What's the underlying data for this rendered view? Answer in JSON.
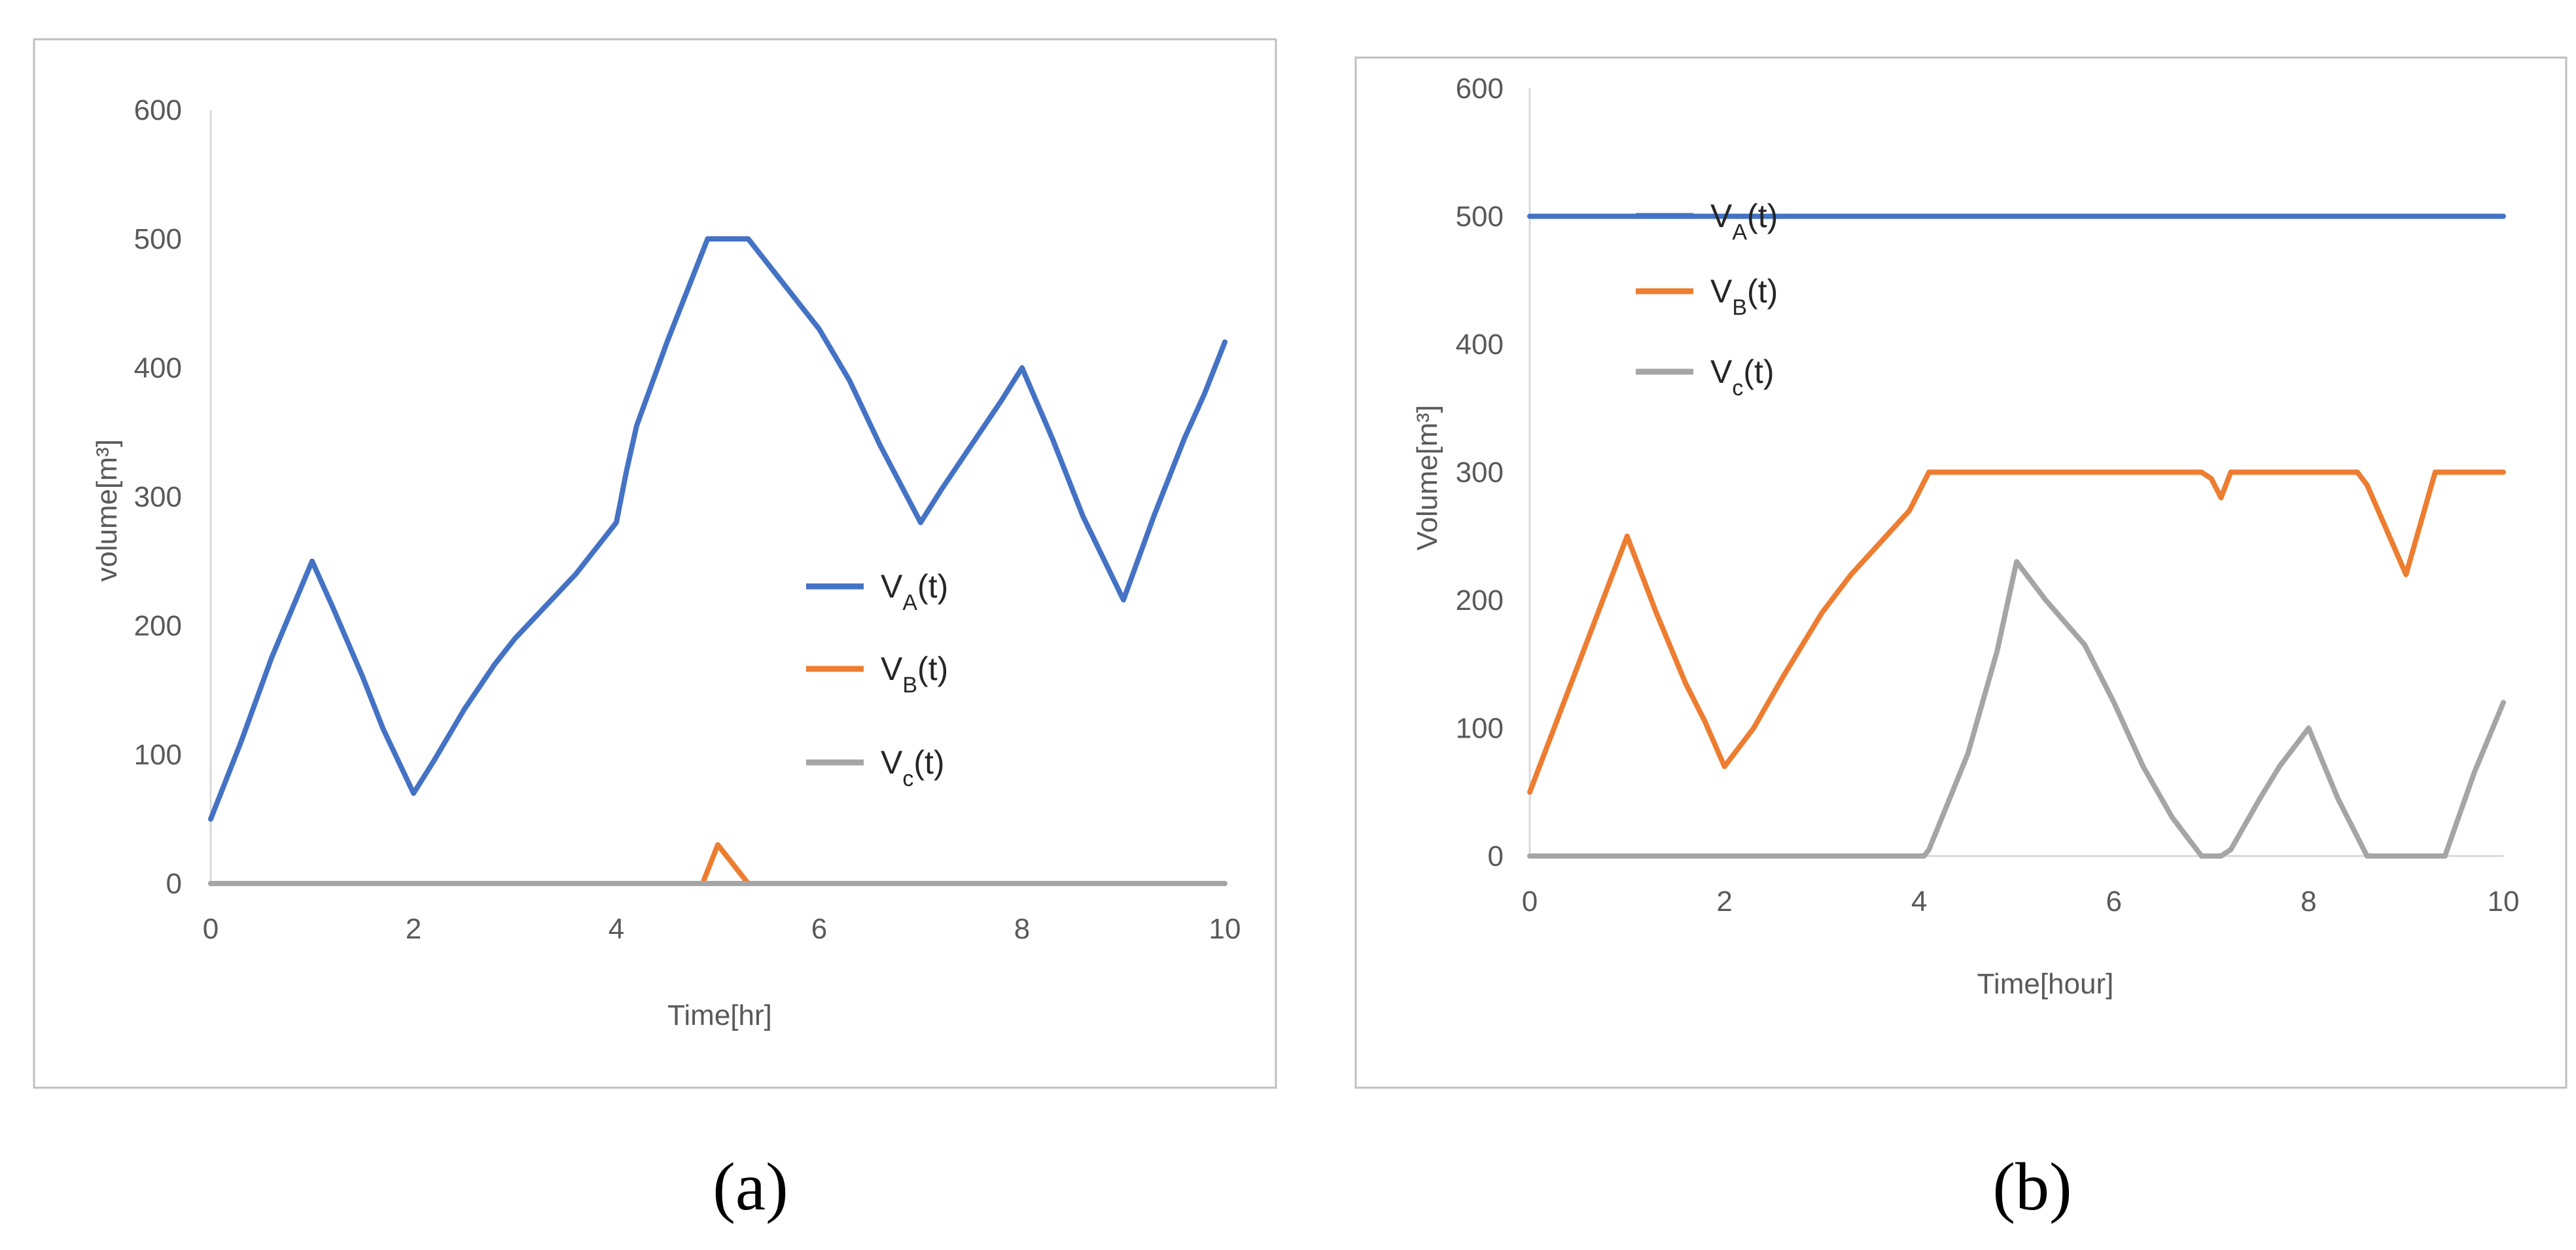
{
  "colors": {
    "va": "#4472C4",
    "vb": "#ED7D31",
    "vc": "#A5A5A5",
    "axis": "#D9D9D9",
    "frame": "#BFBFBF",
    "text": "#595959"
  },
  "chart_data": [
    {
      "id": "a",
      "type": "line",
      "caption": "(a)",
      "xlabel": "Time[hr]",
      "ylabel": "volume[m³]",
      "xlim": [
        0,
        10
      ],
      "ylim": [
        0,
        600
      ],
      "xticks": [
        0,
        2,
        4,
        6,
        8,
        10
      ],
      "yticks": [
        0,
        100,
        200,
        300,
        400,
        500,
        600
      ],
      "legend": [
        {
          "base": "V",
          "sub": "A",
          "tail": "(t)"
        },
        {
          "base": "V",
          "sub": "B",
          "tail": "(t)"
        },
        {
          "base": "V",
          "sub": "c",
          "tail": "(t)"
        }
      ],
      "series": [
        {
          "name": "VA(t)",
          "color_key": "va",
          "x": [
            0,
            0.3,
            0.6,
            1.0,
            1.2,
            1.5,
            1.7,
            2.0,
            2.2,
            2.5,
            2.8,
            3.0,
            3.3,
            3.6,
            3.8,
            4.0,
            4.1,
            4.2,
            4.5,
            4.8,
            4.9,
            5.0,
            5.3,
            5.5,
            5.8,
            6.0,
            6.3,
            6.6,
            7.0,
            7.2,
            7.5,
            7.8,
            8.0,
            8.3,
            8.6,
            9.0,
            9.3,
            9.6,
            9.8,
            10.0
          ],
          "y": [
            50,
            110,
            175,
            250,
            215,
            160,
            120,
            70,
            95,
            135,
            170,
            190,
            215,
            240,
            260,
            280,
            320,
            355,
            420,
            480,
            500,
            500,
            500,
            480,
            450,
            430,
            390,
            340,
            280,
            305,
            340,
            375,
            400,
            345,
            285,
            220,
            285,
            345,
            380,
            420
          ]
        },
        {
          "name": "VB(t)",
          "color_key": "vb",
          "x": [
            0,
            4.85,
            5.0,
            5.3,
            10.0
          ],
          "y": [
            0,
            0,
            30,
            0,
            0
          ]
        },
        {
          "name": "Vc(t)",
          "color_key": "vc",
          "x": [
            0,
            10.0
          ],
          "y": [
            0,
            0
          ]
        }
      ]
    },
    {
      "id": "b",
      "type": "line",
      "caption": "(b)",
      "xlabel": "Time[hour]",
      "ylabel": "Volume[m³]",
      "xlim": [
        0,
        10
      ],
      "ylim": [
        0,
        600
      ],
      "xticks": [
        0,
        2,
        4,
        6,
        8,
        10
      ],
      "yticks": [
        0,
        100,
        200,
        300,
        400,
        500,
        600
      ],
      "legend": [
        {
          "base": "V",
          "sub": "A",
          "tail": "(t)"
        },
        {
          "base": "V",
          "sub": "B",
          "tail": "(t)"
        },
        {
          "base": "V",
          "sub": "c",
          "tail": "(t)"
        }
      ],
      "series": [
        {
          "name": "VA(t)",
          "color_key": "va",
          "x": [
            0,
            10.0
          ],
          "y": [
            500,
            500
          ]
        },
        {
          "name": "VB(t)",
          "color_key": "vb",
          "x": [
            0,
            0.3,
            0.5,
            0.8,
            1.0,
            1.3,
            1.6,
            1.8,
            2.0,
            2.3,
            2.6,
            3.0,
            3.3,
            3.6,
            3.9,
            4.1,
            6.9,
            7.0,
            7.1,
            7.2,
            8.5,
            8.6,
            9.0,
            9.3,
            10.0
          ],
          "y": [
            50,
            110,
            150,
            210,
            250,
            190,
            135,
            105,
            70,
            100,
            140,
            190,
            220,
            245,
            270,
            300,
            300,
            295,
            280,
            300,
            300,
            290,
            220,
            300,
            300
          ]
        },
        {
          "name": "Vc(t)",
          "color_key": "vc",
          "x": [
            0,
            4.05,
            4.1,
            4.5,
            4.8,
            5.0,
            5.3,
            5.7,
            6.0,
            6.3,
            6.6,
            6.9,
            7.1,
            7.2,
            7.5,
            7.7,
            8.0,
            8.3,
            8.6,
            8.7,
            9.4,
            9.7,
            10.0
          ],
          "y": [
            0,
            0,
            5,
            80,
            160,
            230,
            200,
            165,
            120,
            70,
            30,
            0,
            0,
            5,
            45,
            70,
            100,
            45,
            0,
            0,
            0,
            65,
            120
          ]
        }
      ]
    }
  ]
}
